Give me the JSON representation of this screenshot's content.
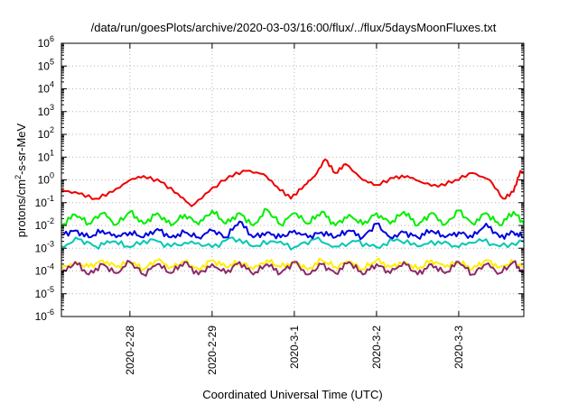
{
  "chart_data": {
    "type": "line",
    "title": "/data/run/goesPlots/archive/2020-03-03/16:00/flux/../flux/5daysMoonFluxes.txt",
    "xlabel": "Coordinated Universal Time (UTC)",
    "ylabel_base": "protons/cm",
    "ylabel_sup": "2",
    "ylabel_rest": "-s-sr-MeV",
    "yscale": "log",
    "ylim": [
      1e-06,
      1000000.0
    ],
    "y_ticks": [
      {
        "exp": "-6",
        "value": 1e-06
      },
      {
        "exp": "-5",
        "value": 1e-05
      },
      {
        "exp": "-4",
        "value": 0.0001
      },
      {
        "exp": "-3",
        "value": 0.001
      },
      {
        "exp": "-2",
        "value": 0.01
      },
      {
        "exp": "-1",
        "value": 0.1
      },
      {
        "exp": "0",
        "value": 1
      },
      {
        "exp": "1",
        "value": 10
      },
      {
        "exp": "2",
        "value": 100
      },
      {
        "exp": "3",
        "value": 1000
      },
      {
        "exp": "4",
        "value": 10000
      },
      {
        "exp": "5",
        "value": 100000
      },
      {
        "exp": "6",
        "value": 1000000
      }
    ],
    "y_tick_base": "10",
    "xlim": [
      "2020-02-27T04:00",
      "2020-03-03T19:00"
    ],
    "x_ticks": [
      {
        "label": "2020-2-28",
        "date": "2020-02-28T00:00"
      },
      {
        "label": "2020-2-29",
        "date": "2020-02-29T00:00"
      },
      {
        "label": "2020-3-1",
        "date": "2020-03-01T00:00"
      },
      {
        "label": "2020-3-2",
        "date": "2020-03-02T00:00"
      },
      {
        "label": "2020-3-3",
        "date": "2020-03-03T00:00"
      }
    ],
    "grid": true,
    "series": [
      {
        "color": "#00ee00",
        "style": "spiky",
        "points": [
          [
            "2020-02-27T04:00",
            0.01
          ],
          [
            "2020-02-27T08:00",
            0.03
          ],
          [
            "2020-02-27T12:00",
            0.012
          ],
          [
            "2020-02-27T16:00",
            0.035
          ],
          [
            "2020-02-27T20:00",
            0.011
          ],
          [
            "2020-02-28T00:00",
            0.04
          ],
          [
            "2020-02-28T04:00",
            0.012
          ],
          [
            "2020-02-28T08:00",
            0.035
          ],
          [
            "2020-02-28T12:00",
            0.01
          ],
          [
            "2020-02-28T16:00",
            0.03
          ],
          [
            "2020-02-28T20:00",
            0.011
          ],
          [
            "2020-02-29T00:00",
            0.045
          ],
          [
            "2020-02-29T04:00",
            0.012
          ],
          [
            "2020-02-29T08:00",
            0.035
          ],
          [
            "2020-02-29T12:00",
            0.01
          ],
          [
            "2020-02-29T16:00",
            0.05
          ],
          [
            "2020-02-29T20:00",
            0.011
          ],
          [
            "2020-03-01T00:00",
            0.035
          ],
          [
            "2020-03-01T04:00",
            0.012
          ],
          [
            "2020-03-01T08:00",
            0.04
          ],
          [
            "2020-03-01T12:00",
            0.01
          ],
          [
            "2020-03-01T16:00",
            0.03
          ],
          [
            "2020-03-01T20:00",
            0.011
          ],
          [
            "2020-03-02T00:00",
            0.035
          ],
          [
            "2020-03-02T04:00",
            0.012
          ],
          [
            "2020-03-02T08:00",
            0.04
          ],
          [
            "2020-03-02T12:00",
            0.01
          ],
          [
            "2020-03-02T16:00",
            0.035
          ],
          [
            "2020-03-02T20:00",
            0.011
          ],
          [
            "2020-03-03T00:00",
            0.045
          ],
          [
            "2020-03-03T04:00",
            0.012
          ],
          [
            "2020-03-03T08:00",
            0.035
          ],
          [
            "2020-03-03T12:00",
            0.01
          ],
          [
            "2020-03-03T16:00",
            0.04
          ],
          [
            "2020-03-03T19:00",
            0.012
          ]
        ]
      },
      {
        "color": "#00c8b4",
        "style": "spiky",
        "points": [
          [
            "2020-02-27T04:00",
            0.0012
          ],
          [
            "2020-02-27T09:00",
            0.0025
          ],
          [
            "2020-02-27T14:00",
            0.0012
          ],
          [
            "2020-02-27T19:00",
            0.002
          ],
          [
            "2020-02-28T00:00",
            0.0011
          ],
          [
            "2020-02-28T06:00",
            0.0025
          ],
          [
            "2020-02-28T12:00",
            0.0012
          ],
          [
            "2020-02-28T18:00",
            0.002
          ],
          [
            "2020-02-29T00:00",
            0.0011
          ],
          [
            "2020-02-29T06:00",
            0.003
          ],
          [
            "2020-02-29T12:00",
            0.0012
          ],
          [
            "2020-02-29T18:00",
            0.002
          ],
          [
            "2020-03-01T00:00",
            0.0011
          ],
          [
            "2020-03-01T06:00",
            0.0025
          ],
          [
            "2020-03-01T12:00",
            0.0012
          ],
          [
            "2020-03-01T18:00",
            0.002
          ],
          [
            "2020-03-02T00:00",
            0.0011
          ],
          [
            "2020-03-02T06:00",
            0.0025
          ],
          [
            "2020-03-02T12:00",
            0.0012
          ],
          [
            "2020-03-02T18:00",
            0.002
          ],
          [
            "2020-03-03T00:00",
            0.0011
          ],
          [
            "2020-03-03T06:00",
            0.0025
          ],
          [
            "2020-03-03T12:00",
            0.0012
          ],
          [
            "2020-03-03T19:00",
            0.002
          ]
        ]
      },
      {
        "color": "#0000dd",
        "style": "spiky",
        "points": [
          [
            "2020-02-27T04:00",
            0.004
          ],
          [
            "2020-02-27T08:00",
            0.006
          ],
          [
            "2020-02-27T12:00",
            0.003
          ],
          [
            "2020-02-27T16:00",
            0.006
          ],
          [
            "2020-02-27T20:00",
            0.003
          ],
          [
            "2020-02-28T00:00",
            0.005
          ],
          [
            "2020-02-28T04:00",
            0.003
          ],
          [
            "2020-02-28T08:00",
            0.007
          ],
          [
            "2020-02-28T12:00",
            0.003
          ],
          [
            "2020-02-28T16:00",
            0.005
          ],
          [
            "2020-02-28T20:00",
            0.003
          ],
          [
            "2020-02-29T00:00",
            0.006
          ],
          [
            "2020-02-29T04:00",
            0.003
          ],
          [
            "2020-02-29T08:00",
            0.015
          ],
          [
            "2020-02-29T12:00",
            0.003
          ],
          [
            "2020-02-29T16:00",
            0.005
          ],
          [
            "2020-02-29T20:00",
            0.003
          ],
          [
            "2020-03-01T00:00",
            0.006
          ],
          [
            "2020-03-01T04:00",
            0.003
          ],
          [
            "2020-03-01T08:00",
            0.005
          ],
          [
            "2020-03-01T12:00",
            0.003
          ],
          [
            "2020-03-01T16:00",
            0.006
          ],
          [
            "2020-03-01T20:00",
            0.003
          ],
          [
            "2020-03-02T00:00",
            0.012
          ],
          [
            "2020-03-02T04:00",
            0.003
          ],
          [
            "2020-03-02T08:00",
            0.005
          ],
          [
            "2020-03-02T12:00",
            0.003
          ],
          [
            "2020-03-02T16:00",
            0.006
          ],
          [
            "2020-03-02T20:00",
            0.003
          ],
          [
            "2020-03-03T00:00",
            0.005
          ],
          [
            "2020-03-03T04:00",
            0.003
          ],
          [
            "2020-03-03T08:00",
            0.012
          ],
          [
            "2020-03-03T12:00",
            0.003
          ],
          [
            "2020-03-03T16:00",
            0.005
          ],
          [
            "2020-03-03T19:00",
            0.003
          ]
        ]
      },
      {
        "color": "#ffee00",
        "style": "spiky",
        "points": [
          [
            "2020-02-27T04:00",
            0.00012
          ],
          [
            "2020-02-27T08:00",
            0.00025
          ],
          [
            "2020-02-27T12:00",
            0.00015
          ],
          [
            "2020-02-27T16:00",
            0.0003
          ],
          [
            "2020-02-27T20:00",
            0.00015
          ],
          [
            "2020-02-28T00:00",
            0.00025
          ],
          [
            "2020-02-28T04:00",
            0.00012
          ],
          [
            "2020-02-28T08:00",
            0.0003
          ],
          [
            "2020-02-28T12:00",
            0.00015
          ],
          [
            "2020-02-28T16:00",
            0.00025
          ],
          [
            "2020-02-28T20:00",
            0.00012
          ],
          [
            "2020-02-29T00:00",
            0.0003
          ],
          [
            "2020-02-29T04:00",
            0.00015
          ],
          [
            "2020-02-29T08:00",
            0.00025
          ],
          [
            "2020-02-29T12:00",
            0.00012
          ],
          [
            "2020-02-29T16:00",
            0.0003
          ],
          [
            "2020-02-29T20:00",
            0.00015
          ],
          [
            "2020-03-01T00:00",
            0.00025
          ],
          [
            "2020-03-01T04:00",
            0.00012
          ],
          [
            "2020-03-01T08:00",
            0.0003
          ],
          [
            "2020-03-01T12:00",
            0.00015
          ],
          [
            "2020-03-01T16:00",
            0.00025
          ],
          [
            "2020-03-01T20:00",
            0.00012
          ],
          [
            "2020-03-02T00:00",
            0.0003
          ],
          [
            "2020-03-02T04:00",
            0.00015
          ],
          [
            "2020-03-02T08:00",
            0.00025
          ],
          [
            "2020-03-02T12:00",
            0.00012
          ],
          [
            "2020-03-02T16:00",
            0.0003
          ],
          [
            "2020-03-02T20:00",
            0.00015
          ],
          [
            "2020-03-03T00:00",
            0.00025
          ],
          [
            "2020-03-03T04:00",
            0.00012
          ],
          [
            "2020-03-03T08:00",
            0.0003
          ],
          [
            "2020-03-03T12:00",
            0.00015
          ],
          [
            "2020-03-03T16:00",
            0.00025
          ],
          [
            "2020-03-03T19:00",
            0.00015
          ]
        ]
      },
      {
        "color": "#8b2a6a",
        "style": "spiky",
        "points": [
          [
            "2020-02-27T04:00",
            7e-05
          ],
          [
            "2020-02-27T08:00",
            0.00025
          ],
          [
            "2020-02-27T12:00",
            7e-05
          ],
          [
            "2020-02-27T16:00",
            0.0002
          ],
          [
            "2020-02-27T20:00",
            8e-05
          ],
          [
            "2020-02-28T00:00",
            0.00025
          ],
          [
            "2020-02-28T04:00",
            7e-05
          ],
          [
            "2020-02-28T08:00",
            0.0002
          ],
          [
            "2020-02-28T12:00",
            8e-05
          ],
          [
            "2020-02-28T16:00",
            0.00025
          ],
          [
            "2020-02-28T20:00",
            7e-05
          ],
          [
            "2020-02-29T00:00",
            0.0002
          ],
          [
            "2020-02-29T04:00",
            8e-05
          ],
          [
            "2020-02-29T08:00",
            0.00025
          ],
          [
            "2020-02-29T12:00",
            7e-05
          ],
          [
            "2020-02-29T16:00",
            0.0002
          ],
          [
            "2020-02-29T20:00",
            8e-05
          ],
          [
            "2020-03-01T00:00",
            0.00025
          ],
          [
            "2020-03-01T04:00",
            7e-05
          ],
          [
            "2020-03-01T08:00",
            0.0002
          ],
          [
            "2020-03-01T12:00",
            8e-05
          ],
          [
            "2020-03-01T16:00",
            0.00025
          ],
          [
            "2020-03-01T20:00",
            7e-05
          ],
          [
            "2020-03-02T00:00",
            0.0002
          ],
          [
            "2020-03-02T04:00",
            8e-05
          ],
          [
            "2020-03-02T08:00",
            0.00025
          ],
          [
            "2020-03-02T12:00",
            7e-05
          ],
          [
            "2020-03-02T16:00",
            0.0002
          ],
          [
            "2020-03-02T20:00",
            8e-05
          ],
          [
            "2020-03-03T00:00",
            0.00025
          ],
          [
            "2020-03-03T04:00",
            7e-05
          ],
          [
            "2020-03-03T08:00",
            0.0002
          ],
          [
            "2020-03-03T12:00",
            8e-05
          ],
          [
            "2020-03-03T16:00",
            0.00025
          ],
          [
            "2020-03-03T19:00",
            8e-05
          ]
        ]
      },
      {
        "color": "#ee0000",
        "style": "smooth",
        "points": [
          [
            "2020-02-27T04:00",
            0.35
          ],
          [
            "2020-02-27T09:00",
            0.25
          ],
          [
            "2020-02-27T14:00",
            0.15
          ],
          [
            "2020-02-27T19:00",
            0.3
          ],
          [
            "2020-02-28T00:00",
            1.0
          ],
          [
            "2020-02-28T04:00",
            1.5
          ],
          [
            "2020-02-28T09:00",
            0.8
          ],
          [
            "2020-02-28T14:00",
            0.25
          ],
          [
            "2020-02-28T18:00",
            0.07
          ],
          [
            "2020-02-28T23:00",
            0.3
          ],
          [
            "2020-02-29T05:00",
            1.5
          ],
          [
            "2020-02-29T10:00",
            2.5
          ],
          [
            "2020-02-29T15:00",
            1.8
          ],
          [
            "2020-02-29T19:00",
            0.5
          ],
          [
            "2020-02-29T23:00",
            0.15
          ],
          [
            "2020-03-01T03:00",
            0.6
          ],
          [
            "2020-03-01T06:00",
            1.5
          ],
          [
            "2020-03-01T09:00",
            8.0
          ],
          [
            "2020-03-01T12:00",
            2.0
          ],
          [
            "2020-03-01T15:00",
            5.0
          ],
          [
            "2020-03-01T20:00",
            1.0
          ],
          [
            "2020-03-02T00:00",
            0.6
          ],
          [
            "2020-03-02T05:00",
            1.2
          ],
          [
            "2020-03-02T09:00",
            1.5
          ],
          [
            "2020-03-02T13:00",
            0.8
          ],
          [
            "2020-03-02T18:00",
            0.5
          ],
          [
            "2020-03-02T23:00",
            1.0
          ],
          [
            "2020-03-03T04:00",
            2.0
          ],
          [
            "2020-03-03T09:00",
            1.0
          ],
          [
            "2020-03-03T13:00",
            0.15
          ],
          [
            "2020-03-03T16:00",
            0.3
          ],
          [
            "2020-03-03T18:00",
            2.5
          ],
          [
            "2020-03-03T19:00",
            2.0
          ]
        ]
      }
    ]
  }
}
